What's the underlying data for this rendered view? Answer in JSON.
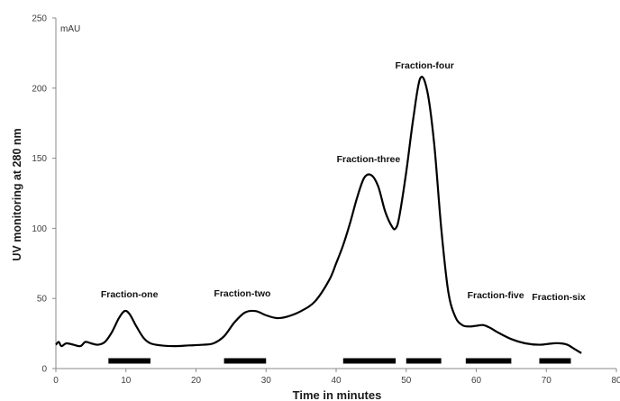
{
  "chart_data": {
    "type": "line",
    "xlabel": "Time in minutes",
    "ylabel": "UV monitoring at 280 nm",
    "unit_label": "mAU",
    "xlim": [
      0,
      80
    ],
    "ylim": [
      0,
      250
    ],
    "x_ticks": [
      0,
      10,
      20,
      30,
      40,
      50,
      60,
      70,
      80
    ],
    "y_ticks": [
      0,
      50,
      100,
      150,
      200,
      250
    ],
    "grid": false,
    "series": [
      {
        "x": [
          0,
          0.4,
          0.8,
          1.5,
          2.5,
          3.5,
          4.2,
          5,
          6,
          7,
          8,
          9,
          9.8,
          10.5,
          11.5,
          12.5,
          13.5,
          15,
          17,
          19,
          21,
          22.5,
          24,
          25.5,
          27,
          28.5,
          30,
          31.5,
          33,
          35,
          37,
          39,
          40,
          41,
          42,
          43,
          44,
          45,
          46,
          47,
          48,
          48.5,
          49,
          50,
          51,
          52,
          53,
          54,
          55,
          56,
          57,
          58,
          59,
          60,
          61,
          62,
          63,
          65,
          67,
          69,
          71,
          72,
          73,
          74,
          75
        ],
        "y": [
          17,
          19,
          16,
          18,
          17,
          16,
          19,
          18,
          17,
          19,
          26,
          36,
          41,
          39,
          30,
          22,
          18,
          16.5,
          16,
          16.5,
          17,
          18,
          23,
          33,
          40,
          41,
          38,
          36,
          37,
          41,
          48,
          63,
          75,
          88,
          104,
          122,
          136,
          138,
          130,
          112,
          101,
          100,
          108,
          140,
          178,
          207,
          198,
          160,
          100,
          55,
          37,
          31,
          30,
          30.5,
          31,
          29,
          26,
          21,
          18,
          17,
          18,
          18,
          17,
          14,
          11
        ]
      }
    ],
    "fractions": [
      {
        "label": "Fraction-one",
        "start": 7.5,
        "end": 13.5
      },
      {
        "label": "Fraction-two",
        "start": 24,
        "end": 30
      },
      {
        "label": "Fraction-three",
        "start": 41,
        "end": 48.5
      },
      {
        "label": "Fraction-four",
        "start": 50,
        "end": 55
      },
      {
        "label": "Fraction-five",
        "start": 58.5,
        "end": 65
      },
      {
        "label": "Fraction-six",
        "start": 69,
        "end": 73.5
      }
    ]
  }
}
